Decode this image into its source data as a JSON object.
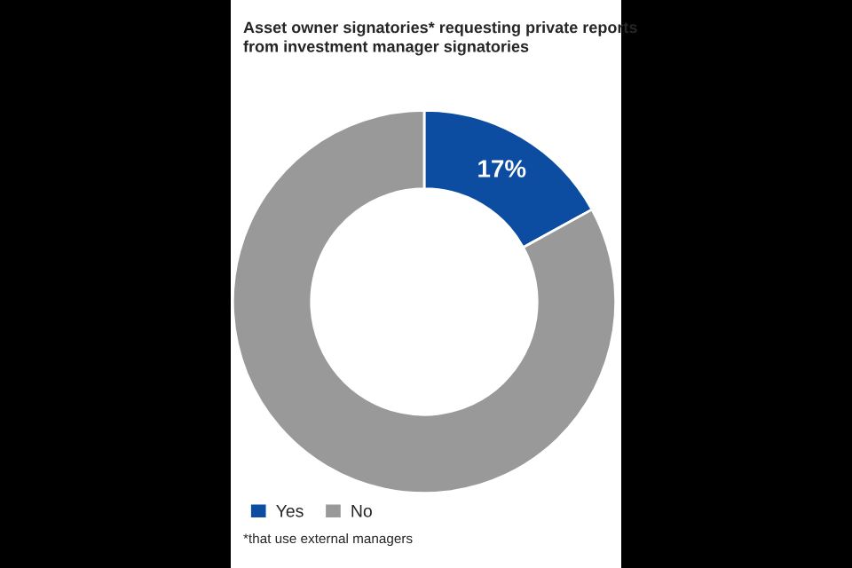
{
  "chart_data": {
    "type": "donut",
    "title": "Asset owner signatories* requesting private reports\nfrom investment manager signatories",
    "categories": [
      "Yes",
      "No"
    ],
    "values": [
      17,
      83
    ],
    "colors": [
      "#0c4da2",
      "#999999"
    ],
    "value_labels": [
      "17%",
      null
    ],
    "legend": "bottom left",
    "annotations": [
      "*that use external managers"
    ]
  }
}
